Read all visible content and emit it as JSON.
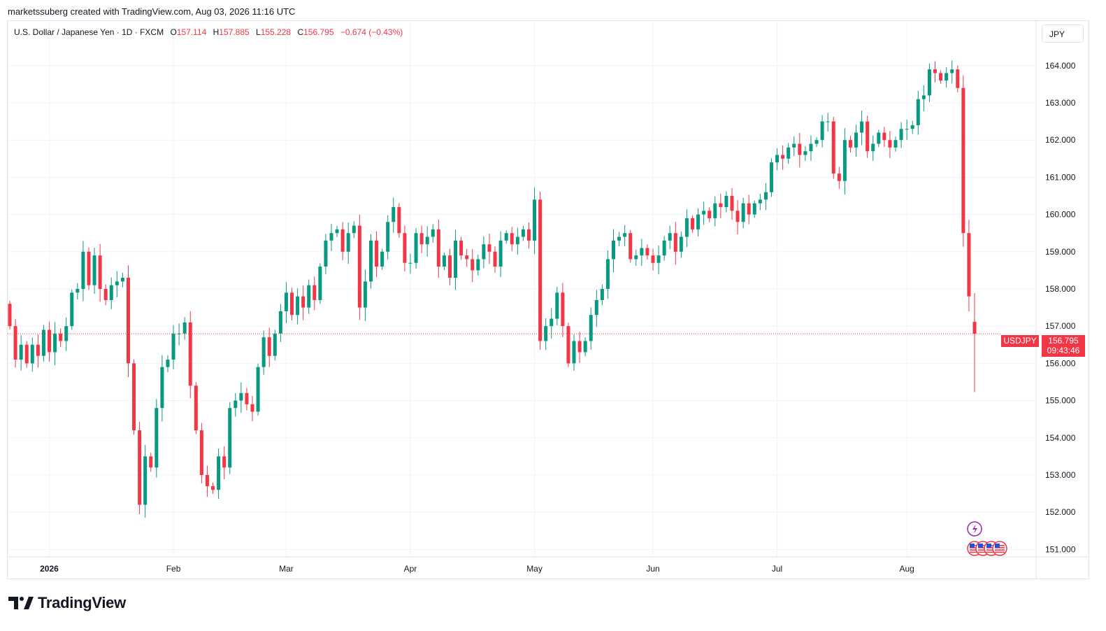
{
  "header": {
    "text": "marketssuberg created with TradingView.com, Aug 03, 2026 11:16 UTC"
  },
  "legend": {
    "symbol": "U.S. Dollar / Japanese Yen · 1D · FXCM",
    "o_label": "O",
    "o": "157.114",
    "h_label": "H",
    "h": "157.885",
    "l_label": "L",
    "l": "155.228",
    "c_label": "C",
    "c": "156.795",
    "change": "−0.674 (−0.43%)"
  },
  "currency_button": "JPY",
  "last_price": {
    "symbol": "USDJPY",
    "price": "156.795",
    "countdown": "09:43:46"
  },
  "footer": {
    "brand": "TradingView"
  },
  "colors": {
    "up": "#089981",
    "down": "#f23645",
    "grid": "#f0f3fa",
    "axis_text": "#131722"
  },
  "chart_data": {
    "type": "candlestick",
    "symbol": "USDJPY",
    "ylim": [
      150.8,
      165.2
    ],
    "y_ticks": [
      "151.000",
      "152.000",
      "153.000",
      "154.000",
      "155.000",
      "156.000",
      "157.000",
      "158.000",
      "159.000",
      "160.000",
      "161.000",
      "162.000",
      "163.000",
      "164.000"
    ],
    "x_labels": [
      {
        "label": "2026",
        "date": "2026-01-01",
        "bold": true
      },
      {
        "label": "Feb",
        "date": "2026-02-01"
      },
      {
        "label": "Mar",
        "date": "2026-03-01"
      },
      {
        "label": "Apr",
        "date": "2026-04-01"
      },
      {
        "label": "May",
        "date": "2026-05-01"
      },
      {
        "label": "Jun",
        "date": "2026-06-01"
      },
      {
        "label": "Jul",
        "date": "2026-07-01"
      },
      {
        "label": "Aug",
        "date": "2026-08-01"
      }
    ],
    "last_close": 156.795,
    "closes": [
      157.0,
      156.1,
      156.5,
      156.0,
      156.5,
      156.2,
      156.9,
      156.3,
      156.8,
      156.6,
      157.0,
      157.9,
      158.0,
      159.0,
      158.1,
      158.9,
      158.0,
      157.7,
      158.1,
      158.2,
      158.3,
      156.0,
      154.2,
      152.2,
      153.5,
      153.2,
      154.8,
      155.9,
      156.1,
      156.8,
      156.8,
      157.1,
      155.4,
      154.2,
      153.0,
      152.7,
      152.6,
      153.5,
      153.2,
      154.8,
      155.0,
      155.2,
      154.9,
      154.7,
      155.9,
      156.7,
      156.2,
      156.8,
      157.4,
      157.9,
      157.3,
      157.8,
      157.5,
      158.1,
      157.7,
      158.6,
      159.3,
      159.5,
      159.6,
      159.0,
      159.5,
      159.7,
      157.5,
      158.2,
      159.3,
      158.6,
      159.0,
      159.8,
      160.2,
      159.5,
      158.7,
      158.7,
      159.5,
      159.2,
      159.4,
      159.6,
      158.6,
      158.9,
      158.3,
      159.3,
      158.9,
      158.8,
      158.5,
      158.8,
      159.2,
      159.0,
      158.6,
      159.3,
      159.5,
      159.2,
      159.4,
      159.6,
      159.3,
      160.4,
      156.6,
      157.0,
      157.2,
      157.9,
      157.0,
      156.0,
      156.6,
      156.3,
      156.6,
      157.3,
      157.7,
      158.0,
      158.8,
      159.3,
      159.4,
      159.5,
      158.8,
      158.9,
      159.1,
      158.9,
      158.7,
      158.9,
      159.3,
      159.5,
      159.0,
      159.4,
      159.9,
      159.6,
      160.0,
      160.1,
      159.9,
      160.3,
      160.2,
      160.5,
      160.1,
      159.8,
      160.3,
      160.0,
      160.3,
      160.4,
      160.6,
      161.4,
      161.6,
      161.5,
      161.8,
      161.9,
      161.6,
      161.7,
      161.9,
      162.0,
      162.5,
      162.5,
      161.1,
      160.9,
      162.0,
      161.8,
      162.2,
      162.5,
      161.7,
      161.9,
      162.2,
      162.0,
      161.8,
      162.0,
      162.3,
      162.3,
      162.4,
      163.1,
      163.2,
      163.9,
      163.8,
      163.6,
      163.8,
      163.9,
      163.4,
      159.5,
      157.8,
      156.795
    ]
  }
}
